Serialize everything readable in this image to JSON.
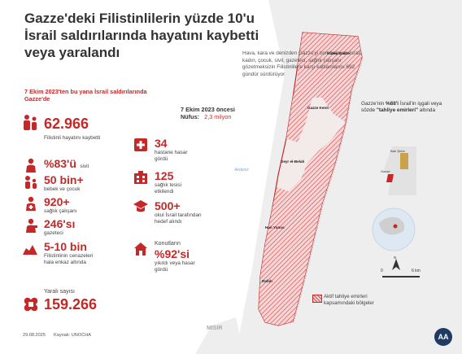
{
  "title": "Gazze'deki Filistinlilerin yüzde 10'u İsrail saldırılarında hayatını kaybetti veya yaralandı",
  "subtitle": "Hava, kara ve denizden Gazze'yi bombalayan İsrail, kadın, çocuk, sivil, gazeteci, sağlık çalışanı gözetmeksizin Filistinlilere karşı katliamlarını 692 gündür sürdürüyor",
  "section_heading": "7 Ekim 2023'ten bu yana İsrail saldırılarında Gazze'de",
  "population": {
    "heading": "7 Ekim 2023 öncesi",
    "label": "Nüfus:",
    "value": "2,3 milyon"
  },
  "stats_left": {
    "killed": {
      "value": "62.966",
      "label": "Filistinli hayatını kaybetti"
    },
    "civilian": {
      "value": "%83'ü",
      "label": "sivil"
    },
    "women_children": {
      "value": "50 bin+",
      "label": "bebek ve çocuk"
    },
    "health_workers": {
      "value": "920+",
      "label": "sağlık çalışanı"
    },
    "journalists": {
      "value": "246'sı",
      "label": "gazeteci"
    },
    "under_rubble": {
      "value": "5-10 bin",
      "label": "Filistinlinin cenazeleri hala enkaz altında"
    },
    "injured": {
      "heading": "Yaralı sayısı",
      "value": "159.266"
    }
  },
  "stats_right": {
    "hospitals": {
      "value": "34",
      "label": "hastane hasar gördü"
    },
    "health_facilities": {
      "value": "125",
      "label": "sağlık tesisi etkilendi"
    },
    "schools": {
      "value": "500+",
      "label": "okul İsrail tarafından hedef alındı"
    },
    "housing": {
      "heading": "Konutların",
      "value": "%92'si",
      "label": "yıkıldı veya hasar gördü"
    }
  },
  "map": {
    "sea_label": "Akdeniz",
    "egypt_label": "MISIR",
    "places": [
      "Kuzey Gazze",
      "Gazze Kenti",
      "Deyr el-Belah",
      "Han Yunus",
      "Refah"
    ],
    "evacuation_note_prefix": "Gazze'nin ",
    "evacuation_note_bold": "%88'i",
    "evacuation_note_mid": " İsrail'in işgali veya sözde ",
    "evacuation_note_bold2": "\"tahliye emirleri\"",
    "evacuation_note_suffix": " altında",
    "inset_labels": [
      "Batı Şeria",
      "Gazze"
    ],
    "scale": [
      "0",
      "6 km"
    ],
    "north": "N"
  },
  "legend": {
    "text": "Aktif tahliye emirleri kapsamındaki bölgeler"
  },
  "footer": {
    "date": "29.08.2025",
    "source": "Kaynak: UNOCHA",
    "logo": "AA"
  },
  "colors": {
    "accent": "#c62828",
    "hatch": "#d64b4b",
    "land": "#ececec",
    "sea": "#ffffff"
  }
}
